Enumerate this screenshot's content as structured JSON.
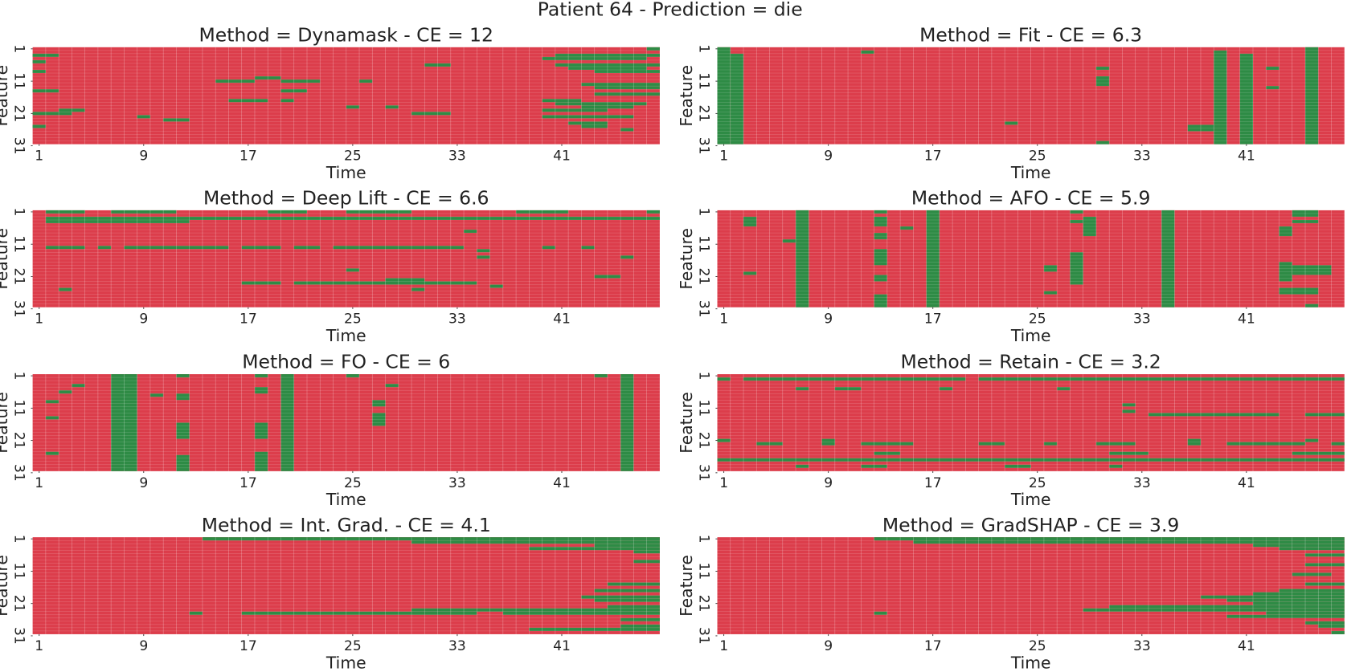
{
  "title": "Patient 64 - Prediction = die",
  "chart_data": [
    {
      "type": "heatmap",
      "title": "Method = Dynamask - CE = 12",
      "x_label": "Time",
      "y_label": "Feature",
      "xlim": [
        0.5,
        48.5
      ],
      "ylim": [
        0.5,
        30.5
      ],
      "xticks": [
        1,
        9,
        17,
        25,
        33,
        41
      ],
      "yticks": [
        1,
        11,
        21,
        31
      ],
      "background_color": "#dc3d4b",
      "color": "#2e8b45",
      "blocks": [
        [
          1,
          1,
          48,
          48
        ],
        [
          3,
          3,
          1,
          2
        ],
        [
          3,
          3,
          41,
          48
        ],
        [
          4,
          4,
          40,
          47
        ],
        [
          5,
          5,
          1,
          1
        ],
        [
          6,
          6,
          41,
          48
        ],
        [
          6,
          6,
          31,
          32
        ],
        [
          7,
          7,
          42,
          47
        ],
        [
          8,
          8,
          1,
          1
        ],
        [
          8,
          8,
          44,
          48
        ],
        [
          11,
          11,
          15,
          17
        ],
        [
          11,
          11,
          20,
          22
        ],
        [
          10,
          10,
          18,
          19
        ],
        [
          11,
          11,
          26,
          26
        ],
        [
          12,
          12,
          43,
          48
        ],
        [
          13,
          13,
          44,
          48
        ],
        [
          14,
          14,
          1,
          2
        ],
        [
          14,
          14,
          20,
          21
        ],
        [
          15,
          15,
          44,
          48
        ],
        [
          17,
          17,
          16,
          18
        ],
        [
          17,
          17,
          20,
          20
        ],
        [
          17,
          17,
          40,
          42
        ],
        [
          18,
          18,
          41,
          47
        ],
        [
          19,
          19,
          43,
          46
        ],
        [
          19,
          19,
          25,
          25
        ],
        [
          20,
          20,
          3,
          4
        ],
        [
          19,
          19,
          28,
          28
        ],
        [
          21,
          21,
          30,
          32
        ],
        [
          21,
          21,
          1,
          3
        ],
        [
          20,
          20,
          40,
          44
        ],
        [
          22,
          22,
          9,
          9
        ],
        [
          23,
          23,
          11,
          12
        ],
        [
          22,
          22,
          40,
          46
        ],
        [
          24,
          24,
          42,
          44
        ],
        [
          25,
          25,
          1,
          1
        ],
        [
          25,
          25,
          43,
          44
        ],
        [
          26,
          26,
          46,
          46
        ]
      ]
    },
    {
      "type": "heatmap",
      "title": "Method = Fit - CE = 6.3",
      "x_label": "Time",
      "y_label": "Feature",
      "xlim": [
        0.5,
        48.5
      ],
      "ylim": [
        0.5,
        30.5
      ],
      "xticks": [
        1,
        9,
        17,
        25,
        33,
        41
      ],
      "yticks": [
        1,
        11,
        21,
        31
      ],
      "background_color": "#dc3d4b",
      "color": "#2e8b45",
      "blocks": [
        [
          1,
          30,
          1,
          1
        ],
        [
          3,
          30,
          2,
          2
        ],
        [
          2,
          30,
          39,
          39
        ],
        [
          3,
          30,
          41,
          41
        ],
        [
          1,
          30,
          46,
          46
        ],
        [
          2,
          2,
          12,
          12
        ],
        [
          7,
          7,
          30,
          30
        ],
        [
          10,
          12,
          30,
          30
        ],
        [
          24,
          24,
          23,
          23
        ],
        [
          7,
          7,
          43,
          43
        ],
        [
          13,
          13,
          43,
          43
        ],
        [
          25,
          26,
          37,
          38
        ],
        [
          30,
          30,
          30,
          30
        ]
      ]
    },
    {
      "type": "heatmap",
      "title": "Method = Deep Lift - CE = 6.6",
      "x_label": "Time",
      "y_label": "Feature",
      "xlim": [
        0.5,
        48.5
      ],
      "ylim": [
        0.5,
        30.5
      ],
      "xticks": [
        1,
        9,
        17,
        25,
        33,
        41
      ],
      "yticks": [
        1,
        11,
        21,
        31
      ],
      "background_color": "#dc3d4b",
      "color": "#2e8b45",
      "blocks": [
        [
          1,
          1,
          2,
          4
        ],
        [
          1,
          1,
          7,
          11
        ],
        [
          1,
          1,
          19,
          21
        ],
        [
          1,
          1,
          25,
          29
        ],
        [
          1,
          1,
          38,
          41
        ],
        [
          1,
          1,
          48,
          48
        ],
        [
          3,
          3,
          2,
          48
        ],
        [
          4,
          4,
          2,
          12
        ],
        [
          7,
          7,
          34,
          34
        ],
        [
          12,
          12,
          2,
          4
        ],
        [
          12,
          12,
          6,
          6
        ],
        [
          12,
          12,
          8,
          15
        ],
        [
          12,
          12,
          17,
          19
        ],
        [
          12,
          12,
          21,
          22
        ],
        [
          12,
          12,
          24,
          33
        ],
        [
          12,
          12,
          40,
          40
        ],
        [
          12,
          12,
          43,
          43
        ],
        [
          13,
          13,
          35,
          35
        ],
        [
          15,
          15,
          35,
          35
        ],
        [
          15,
          15,
          46,
          46
        ],
        [
          19,
          19,
          25,
          25
        ],
        [
          21,
          21,
          44,
          45
        ],
        [
          23,
          23,
          17,
          19
        ],
        [
          23,
          23,
          21,
          34
        ],
        [
          22,
          22,
          28,
          30
        ],
        [
          25,
          25,
          30,
          30
        ],
        [
          24,
          24,
          36,
          36
        ],
        [
          25,
          25,
          3,
          3
        ]
      ]
    },
    {
      "type": "heatmap",
      "title": "Method = AFO - CE = 5.9",
      "x_label": "Time",
      "y_label": "Feature",
      "xlim": [
        0.5,
        48.5
      ],
      "ylim": [
        0.5,
        30.5
      ],
      "xticks": [
        1,
        9,
        17,
        25,
        33,
        41
      ],
      "yticks": [
        1,
        11,
        21,
        31
      ],
      "background_color": "#dc3d4b",
      "color": "#2e8b45",
      "blocks": [
        [
          1,
          30,
          7,
          7
        ],
        [
          1,
          30,
          17,
          17
        ],
        [
          1,
          30,
          35,
          35
        ],
        [
          3,
          5,
          3,
          3
        ],
        [
          10,
          10,
          6,
          6
        ],
        [
          20,
          20,
          3,
          3
        ],
        [
          1,
          1,
          13,
          13
        ],
        [
          3,
          5,
          13,
          13
        ],
        [
          8,
          9,
          13,
          13
        ],
        [
          13,
          17,
          13,
          13
        ],
        [
          21,
          22,
          13,
          13
        ],
        [
          27,
          30,
          13,
          13
        ],
        [
          6,
          6,
          15,
          15
        ],
        [
          1,
          1,
          28,
          28
        ],
        [
          4,
          4,
          28,
          28
        ],
        [
          14,
          23,
          28,
          28
        ],
        [
          18,
          19,
          26,
          26
        ],
        [
          26,
          26,
          26,
          26
        ],
        [
          3,
          8,
          29,
          29
        ],
        [
          1,
          2,
          45,
          46
        ],
        [
          4,
          4,
          45,
          46
        ],
        [
          6,
          8,
          44,
          44
        ],
        [
          17,
          22,
          44,
          44
        ],
        [
          18,
          20,
          45,
          47
        ],
        [
          25,
          26,
          44,
          46
        ],
        [
          30,
          30,
          46,
          46
        ]
      ]
    },
    {
      "type": "heatmap",
      "title": "Method = FO - CE = 6",
      "x_label": "Time",
      "y_label": "Feature",
      "xlim": [
        0.5,
        48.5
      ],
      "ylim": [
        0.5,
        30.5
      ],
      "xticks": [
        1,
        9,
        17,
        25,
        33,
        41
      ],
      "yticks": [
        1,
        11,
        21,
        31
      ],
      "background_color": "#dc3d4b",
      "color": "#2e8b45",
      "blocks": [
        [
          1,
          30,
          7,
          8
        ],
        [
          1,
          30,
          20,
          20
        ],
        [
          1,
          30,
          46,
          46
        ],
        [
          4,
          4,
          4,
          4
        ],
        [
          6,
          6,
          3,
          3
        ],
        [
          9,
          9,
          2,
          2
        ],
        [
          14,
          14,
          2,
          2
        ],
        [
          25,
          25,
          2,
          2
        ],
        [
          1,
          1,
          12,
          12
        ],
        [
          7,
          8,
          12,
          12
        ],
        [
          16,
          20,
          12,
          12
        ],
        [
          26,
          30,
          12,
          12
        ],
        [
          7,
          7,
          10,
          10
        ],
        [
          1,
          1,
          18,
          18
        ],
        [
          5,
          6,
          18,
          18
        ],
        [
          16,
          20,
          18,
          18
        ],
        [
          25,
          30,
          18,
          18
        ],
        [
          1,
          1,
          25,
          25
        ],
        [
          9,
          10,
          27,
          27
        ],
        [
          13,
          16,
          27,
          27
        ],
        [
          4,
          4,
          28,
          28
        ],
        [
          1,
          1,
          44,
          44
        ]
      ]
    },
    {
      "type": "heatmap",
      "title": "Method = Retain - CE = 3.2",
      "x_label": "Time",
      "y_label": "Feature",
      "xlim": [
        0.5,
        48.5
      ],
      "ylim": [
        0.5,
        30.5
      ],
      "xticks": [
        1,
        9,
        17,
        25,
        33,
        41
      ],
      "yticks": [
        1,
        11,
        21,
        31
      ],
      "background_color": "#dc3d4b",
      "color": "#2e8b45",
      "blocks": [
        [
          2,
          2,
          1,
          1
        ],
        [
          2,
          2,
          3,
          19
        ],
        [
          2,
          2,
          21,
          48
        ],
        [
          5,
          5,
          7,
          7
        ],
        [
          5,
          5,
          10,
          11
        ],
        [
          5,
          5,
          18,
          18
        ],
        [
          5,
          5,
          27,
          27
        ],
        [
          10,
          10,
          32,
          32
        ],
        [
          12,
          12,
          32,
          32
        ],
        [
          13,
          13,
          34,
          43
        ],
        [
          13,
          13,
          46,
          48
        ],
        [
          21,
          21,
          1,
          1
        ],
        [
          22,
          22,
          4,
          5
        ],
        [
          21,
          21,
          9,
          9
        ],
        [
          22,
          22,
          9,
          9
        ],
        [
          22,
          22,
          12,
          15
        ],
        [
          22,
          22,
          21,
          22
        ],
        [
          22,
          22,
          26,
          26
        ],
        [
          22,
          22,
          30,
          32
        ],
        [
          21,
          22,
          37,
          37
        ],
        [
          22,
          22,
          40,
          45
        ],
        [
          21,
          21,
          46,
          46
        ],
        [
          22,
          22,
          48,
          48
        ],
        [
          25,
          25,
          13,
          14
        ],
        [
          25,
          25,
          31,
          33
        ],
        [
          25,
          25,
          45,
          48
        ],
        [
          27,
          27,
          1,
          48
        ],
        [
          29,
          29,
          7,
          7
        ],
        [
          29,
          29,
          12,
          13
        ],
        [
          29,
          29,
          23,
          24
        ],
        [
          29,
          29,
          31,
          31
        ]
      ]
    },
    {
      "type": "heatmap",
      "title": "Method = Int. Grad. - CE = 4.1",
      "x_label": "Time",
      "y_label": "Feature",
      "xlim": [
        0.5,
        48.5
      ],
      "ylim": [
        0.5,
        30.5
      ],
      "xticks": [
        1,
        9,
        17,
        25,
        33,
        41
      ],
      "yticks": [
        1,
        11,
        21,
        31
      ],
      "background_color": "#dc3d4b",
      "color": "#2e8b45",
      "blocks": [
        [
          1,
          1,
          14,
          48
        ],
        [
          2,
          2,
          30,
          48
        ],
        [
          3,
          3,
          44,
          48
        ],
        [
          4,
          4,
          39,
          48
        ],
        [
          5,
          5,
          47,
          48
        ],
        [
          8,
          8,
          47,
          48
        ],
        [
          15,
          15,
          45,
          48
        ],
        [
          17,
          17,
          44,
          48
        ],
        [
          19,
          19,
          43,
          48
        ],
        [
          20,
          20,
          44,
          48
        ],
        [
          22,
          22,
          45,
          48
        ],
        [
          23,
          23,
          30,
          48
        ],
        [
          24,
          24,
          17,
          34
        ],
        [
          24,
          24,
          37,
          48
        ],
        [
          24,
          24,
          13,
          13
        ],
        [
          26,
          26,
          46,
          48
        ],
        [
          28,
          28,
          46,
          48
        ],
        [
          29,
          29,
          39,
          48
        ]
      ]
    },
    {
      "type": "heatmap",
      "title": "Method = GradSHAP - CE = 3.9",
      "x_label": "Time",
      "y_label": "Feature",
      "xlim": [
        0.5,
        48.5
      ],
      "ylim": [
        0.5,
        30.5
      ],
      "xticks": [
        1,
        9,
        17,
        25,
        33,
        41
      ],
      "yticks": [
        1,
        11,
        21,
        31
      ],
      "background_color": "#dc3d4b",
      "color": "#2e8b45",
      "blocks": [
        [
          1,
          1,
          13,
          48
        ],
        [
          2,
          2,
          16,
          48
        ],
        [
          3,
          3,
          42,
          48
        ],
        [
          4,
          4,
          44,
          48
        ],
        [
          6,
          6,
          46,
          48
        ],
        [
          9,
          9,
          46,
          48
        ],
        [
          12,
          12,
          45,
          47
        ],
        [
          15,
          15,
          46,
          48
        ],
        [
          17,
          17,
          44,
          48
        ],
        [
          18,
          18,
          42,
          48
        ],
        [
          19,
          19,
          38,
          48
        ],
        [
          20,
          20,
          40,
          48
        ],
        [
          21,
          21,
          42,
          48
        ],
        [
          22,
          22,
          31,
          48
        ],
        [
          23,
          23,
          29,
          48
        ],
        [
          24,
          24,
          13,
          13
        ],
        [
          24,
          24,
          43,
          48
        ],
        [
          25,
          25,
          40,
          48
        ],
        [
          27,
          27,
          46,
          48
        ],
        [
          28,
          28,
          47,
          48
        ],
        [
          30,
          30,
          48,
          48
        ]
      ]
    }
  ]
}
